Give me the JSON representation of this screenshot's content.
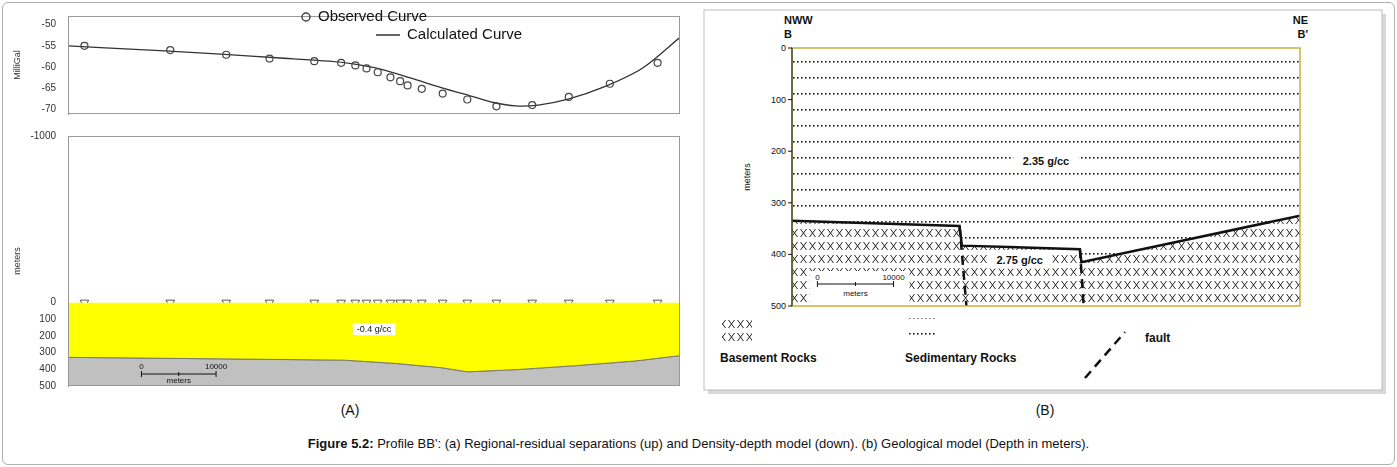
{
  "chart_data": [
    {
      "type": "line",
      "ylabel": "MilliGal",
      "xlim": [
        0,
        82000
      ],
      "ylim": [
        -71,
        -48
      ],
      "yticks": [
        -70,
        -65,
        -60,
        -55,
        -50
      ],
      "tick_labels": "y",
      "grid": false,
      "legend": "top",
      "series": [
        {
          "name": "Observed Curve",
          "type": "scatter",
          "marker": "circle",
          "color": "#444444",
          "x": [
            2200,
            13700,
            21200,
            27000,
            33000,
            36600,
            38500,
            40000,
            41500,
            43200,
            44500,
            45500,
            47400,
            50200,
            53500,
            57400,
            62200,
            67100,
            72600,
            79000
          ],
          "values": [
            -55.0,
            -56.0,
            -57.1,
            -58.0,
            -58.6,
            -59.0,
            -59.6,
            -60.3,
            -61.2,
            -62.4,
            -63.3,
            -64.3,
            -65.1,
            -66.2,
            -67.6,
            -69.2,
            -68.9,
            -67.0,
            -63.9,
            -59.0
          ]
        },
        {
          "name": "Calculated Curve",
          "type": "line",
          "line_style": "solid",
          "color": "#333333",
          "x": [
            0,
            5000,
            13000,
            21000,
            28000,
            35000,
            38000,
            42000,
            46000,
            50000,
            54000,
            57000,
            60000,
            63000,
            67000,
            72000,
            77000,
            82000
          ],
          "values": [
            -55.0,
            -55.5,
            -56.2,
            -57.0,
            -57.8,
            -58.6,
            -59.2,
            -60.5,
            -62.6,
            -64.8,
            -66.8,
            -68.3,
            -69.1,
            -68.9,
            -67.5,
            -64.5,
            -60.2,
            -53.0
          ]
        }
      ]
    },
    {
      "type": "area",
      "ylabel": "meters",
      "xlim": [
        0,
        82000
      ],
      "ylim": [
        -1000,
        500
      ],
      "yticks": [
        -1000,
        0,
        100,
        200,
        300,
        400,
        500
      ],
      "tick_labels": "y",
      "grid": false,
      "x": [
        0,
        20000,
        37000,
        44000,
        50000,
        53500,
        60000,
        68000,
        76000,
        82000
      ],
      "values": [
        328,
        337,
        345,
        365,
        390,
        415,
        402,
        378,
        350,
        318
      ],
      "colors": [
        "#ffff00",
        "#c0c0c0"
      ],
      "annotations": [
        "-0.4 g/cc"
      ],
      "stations": {
        "marker": "triangle",
        "x": [
          2200,
          13700,
          21200,
          27000,
          33000,
          36600,
          38500,
          40000,
          41500,
          43200,
          44500,
          45500,
          47400,
          50200,
          53500,
          57400,
          62200,
          67100,
          72600,
          79000
        ],
        "values": [
          0,
          0,
          0,
          0,
          0,
          0,
          0,
          0,
          0,
          0,
          0,
          0,
          0,
          0,
          0,
          0,
          0,
          0,
          0,
          0
        ]
      },
      "scale_bar": {
        "from": 0,
        "to": 10000,
        "unit": "meters"
      }
    }
  ],
  "geological_model": {
    "type": "diagram",
    "ylabel": "meters",
    "xlim": [
      0,
      66700
    ],
    "ylim": [
      0,
      500
    ],
    "yticks": [
      0,
      100,
      200,
      300,
      400,
      500
    ],
    "ends": {
      "left": [
        "NWW",
        "B"
      ],
      "right": [
        "NE",
        "B'"
      ]
    },
    "basement_top": {
      "x": [
        0,
        22000,
        22300,
        37800,
        38000,
        66700
      ],
      "depth": [
        335,
        345,
        383,
        390,
        415,
        325
      ]
    },
    "faults": [
      {
        "x": [
          22000,
          22900
        ],
        "depth": [
          345,
          500
        ]
      },
      {
        "x": [
          37800,
          38300
        ],
        "depth": [
          390,
          500
        ]
      }
    ],
    "units": [
      {
        "name": "Basement Rocks",
        "density": "2.75 g/cc"
      },
      {
        "name": "Sedimentary Rocks",
        "density": "2.35 g/cc"
      }
    ],
    "fault_label": "fault",
    "scale_bar": {
      "from": 0,
      "to": 10000,
      "unit": "meters"
    }
  },
  "panel_labels": [
    "(A)",
    "(B)"
  ],
  "caption": {
    "label": "Figure 5.2:",
    "text": "Profile BB': (a) Regional-residual separations (up) and Density-depth model (down). (b) Geological model (Depth in meters)."
  }
}
